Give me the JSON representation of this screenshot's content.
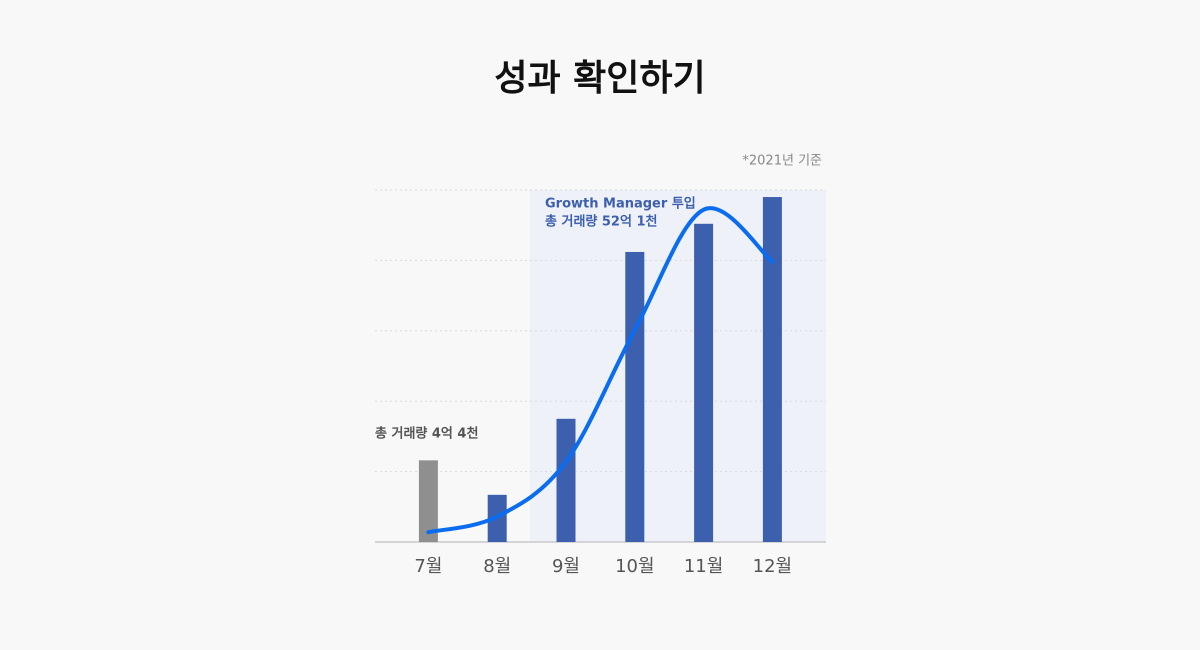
{
  "chart_data": {
    "type": "bar",
    "title": "성과 확인하기",
    "note": "*2021년 기준",
    "categories": [
      "7월",
      "8월",
      "9월",
      "10월",
      "11월",
      "12월"
    ],
    "values": [
      1.16,
      0.67,
      1.75,
      4.12,
      4.52,
      4.9
    ],
    "colors": [
      "#8f8f8f",
      "#3c5fae",
      "#3c5fae",
      "#3c5fae",
      "#3c5fae",
      "#3c5fae"
    ],
    "trend": {
      "color": "#0a6cf0",
      "values": [
        0.14,
        0.36,
        1.14,
        3.01,
        4.72,
        3.98
      ]
    },
    "annotations": [
      "총 거래량 4억 4천",
      "Growth Manager 투입",
      "총 거래량 52억 1천"
    ],
    "ylim": [
      0,
      5
    ],
    "yticks": [
      0,
      1,
      2,
      3,
      4,
      5
    ],
    "grid": true
  }
}
